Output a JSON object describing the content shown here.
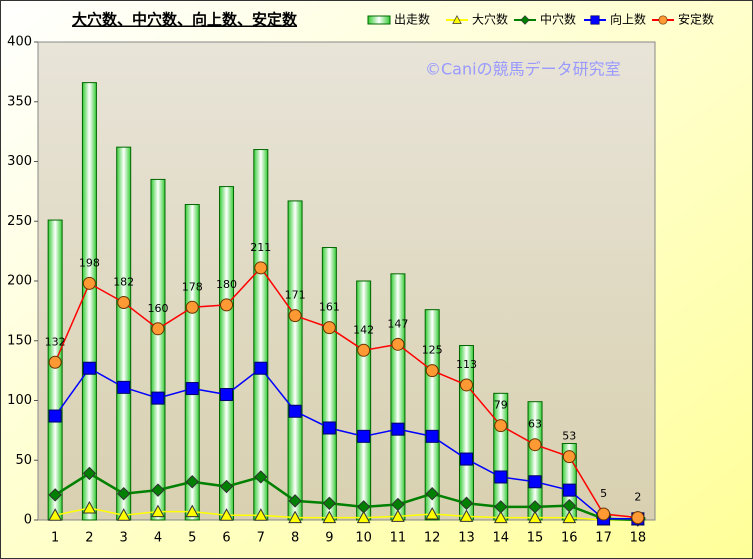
{
  "chart_data": {
    "type": "combo",
    "title": "大穴数、中穴数、向上数、安定数",
    "annotation": "©Caniの競馬データ研究室",
    "categories": [
      "1",
      "2",
      "3",
      "4",
      "5",
      "6",
      "7",
      "8",
      "9",
      "10",
      "11",
      "12",
      "13",
      "14",
      "15",
      "16",
      "17",
      "18"
    ],
    "ylim": [
      0,
      400
    ],
    "yticks": [
      0,
      50,
      100,
      150,
      200,
      250,
      300,
      350,
      400
    ],
    "legend": "top-right",
    "series": [
      {
        "name": "出走数",
        "type": "bar",
        "color": "#33cc33",
        "values": [
          251,
          366,
          312,
          285,
          264,
          279,
          310,
          267,
          228,
          200,
          206,
          176,
          146,
          106,
          99,
          64,
          5,
          2
        ]
      },
      {
        "name": "大穴数",
        "type": "line",
        "marker": "triangle",
        "color": "#ffff00",
        "values": [
          4,
          10,
          4,
          7,
          7,
          4,
          4,
          2,
          2,
          2,
          3,
          5,
          3,
          2,
          2,
          2,
          0,
          0
        ]
      },
      {
        "name": "中穴数",
        "type": "line",
        "marker": "diamond",
        "color": "#008000",
        "values": [
          21,
          39,
          22,
          25,
          32,
          28,
          36,
          16,
          14,
          11,
          13,
          22,
          14,
          11,
          11,
          12,
          1,
          0
        ]
      },
      {
        "name": "向上数",
        "type": "line",
        "marker": "square",
        "color": "#0000ff",
        "values": [
          87,
          127,
          111,
          102,
          110,
          105,
          127,
          91,
          77,
          70,
          76,
          70,
          51,
          36,
          32,
          25,
          1,
          1
        ]
      },
      {
        "name": "安定数",
        "type": "line",
        "marker": "circle",
        "color": "#ff0000",
        "marker_color": "#ff9933",
        "data_labels": true,
        "values": [
          132,
          198,
          182,
          160,
          178,
          180,
          211,
          171,
          161,
          142,
          147,
          125,
          113,
          79,
          63,
          53,
          5,
          2
        ]
      }
    ]
  }
}
